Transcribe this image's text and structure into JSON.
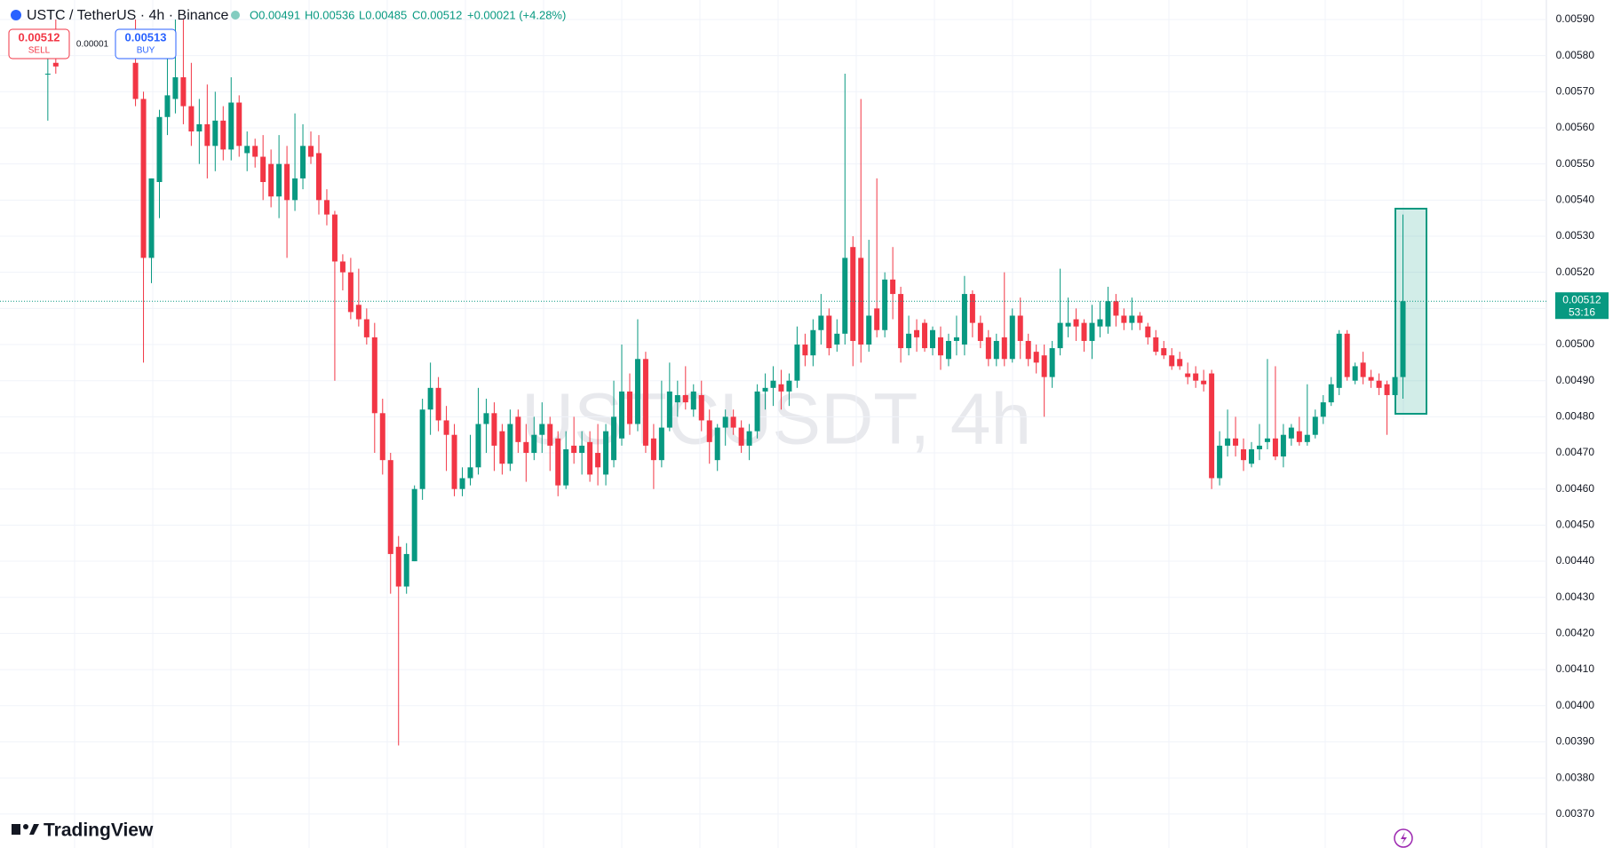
{
  "chart_data": {
    "type": "candlestick",
    "title": "USTC / TetherUS · 4h · Binance",
    "ohlc_legend": {
      "open": "O0.00491",
      "high": "H0.00536",
      "low": "L0.00485",
      "close": "C0.00512",
      "change": "+0.00021 (+4.28%)"
    },
    "trade_widget": {
      "sell_price": "0.00512",
      "sell": "SELL",
      "spread": "0.00001",
      "buy_price": "0.00513",
      "buy": "BUY"
    },
    "watermark": "USTCUSDT, 4h",
    "last_price": 0.00512,
    "countdown": "53:16",
    "brand": "TradingView",
    "up_color": "#089981",
    "down_color": "#f23645",
    "ylim": [
      0.003606,
      0.005954
    ],
    "yticks": [
      {
        "value": 0.0059,
        "label": "0.00590"
      },
      {
        "value": 0.0058,
        "label": "0.00580"
      },
      {
        "value": 0.0057,
        "label": "0.00570"
      },
      {
        "value": 0.0056,
        "label": "0.00560"
      },
      {
        "value": 0.0055,
        "label": "0.00550"
      },
      {
        "value": 0.0054,
        "label": "0.00540"
      },
      {
        "value": 0.0053,
        "label": "0.00530"
      },
      {
        "value": 0.0052,
        "label": "0.00520"
      },
      {
        "value": 0.0051,
        "label": "0.00510"
      },
      {
        "value": 0.005,
        "label": "0.00500"
      },
      {
        "value": 0.0049,
        "label": "0.00490"
      },
      {
        "value": 0.0048,
        "label": "0.00480"
      },
      {
        "value": 0.0047,
        "label": "0.00470"
      },
      {
        "value": 0.0046,
        "label": "0.00460"
      },
      {
        "value": 0.0045,
        "label": "0.00450"
      },
      {
        "value": 0.0044,
        "label": "0.00440"
      },
      {
        "value": 0.0043,
        "label": "0.00430"
      },
      {
        "value": 0.0042,
        "label": "0.00420"
      },
      {
        "value": 0.0041,
        "label": "0.00410"
      },
      {
        "value": 0.004,
        "label": "0.00400"
      },
      {
        "value": 0.0039,
        "label": "0.00390"
      },
      {
        "value": 0.0038,
        "label": "0.00380"
      },
      {
        "value": 0.0037,
        "label": "0.00370"
      }
    ],
    "grid": true,
    "open": [
      0.00575,
      0.00578,
      null,
      null,
      null,
      null,
      null,
      null,
      null,
      null,
      null,
      0.00578,
      0.00568,
      0.00524,
      0.00545,
      0.00563,
      0.00568,
      0.00574,
      0.00566,
      0.00559,
      0.00561,
      0.00555,
      0.00562,
      0.00554,
      0.00567,
      0.00553,
      0.00555,
      0.00552,
      0.0055,
      0.00541,
      0.0055,
      0.0054,
      0.00546,
      0.00555,
      0.00553,
      0.0054,
      0.00536,
      0.00523,
      0.0052,
      0.00511,
      0.00507,
      0.00502,
      0.00481,
      0.00468,
      0.00444,
      0.00433,
      0.0044,
      0.0046,
      0.00482,
      0.00488,
      0.00479,
      0.00475,
      0.0046,
      0.00463,
      0.00466,
      0.00478,
      0.00481,
      0.00476,
      0.00467,
      0.0048,
      0.00473,
      0.0047,
      0.00475,
      0.00478,
      0.00474,
      0.00461,
      0.00472,
      0.0047,
      0.00473,
      0.0047,
      0.00464,
      0.00468,
      0.00474,
      0.00487,
      0.00478,
      0.00496,
      0.00474,
      0.00468,
      0.00477,
      0.00484,
      0.00486,
      0.00482,
      0.00486,
      0.00479,
      0.00468,
      0.00477,
      0.0048,
      0.00477,
      0.00472,
      0.00476,
      0.00487,
      0.00488,
      0.00489,
      0.00487,
      0.0049,
      0.005,
      0.00497,
      0.00504,
      0.00508,
      0.005,
      0.00503,
      0.00527,
      0.00524,
      0.005,
      0.0051,
      0.00504,
      0.00518,
      0.00514,
      0.00499,
      0.00504,
      0.00506,
      0.00499,
      0.00502,
      0.00496,
      0.00501,
      0.005,
      0.00514,
      0.00506,
      0.00502,
      0.00496,
      0.00502,
      0.00496,
      0.00508,
      0.00501,
      0.00498,
      0.00497,
      0.00491,
      0.00499,
      0.00505,
      0.00507,
      0.00506,
      0.00501,
      0.00505,
      0.00505,
      0.00512,
      0.00508,
      0.00506,
      0.00508,
      0.00505,
      0.00502,
      0.00499,
      0.00497,
      0.00496,
      0.00492,
      0.00492,
      0.0049,
      0.00492,
      0.00463,
      0.00472,
      0.00474,
      0.00471,
      0.00467,
      0.00471,
      0.00473,
      0.00474,
      0.00469,
      0.00474,
      0.00476,
      0.00473,
      0.00475,
      0.0048,
      0.00484,
      0.00488,
      0.00503,
      0.0049,
      0.00495,
      0.00491,
      0.0049,
      0.00489,
      0.00486,
      0.00491
    ],
    "high": [
      0.0058,
      0.0059,
      null,
      null,
      null,
      null,
      null,
      null,
      null,
      null,
      null,
      0.0059,
      0.0057,
      0.00546,
      0.00565,
      0.0058,
      0.0059,
      0.0059,
      0.00578,
      0.00568,
      0.00572,
      0.0057,
      0.00566,
      0.00574,
      0.00569,
      0.00559,
      0.00557,
      0.00558,
      0.00554,
      0.00558,
      0.00555,
      0.00564,
      0.00561,
      0.00559,
      0.00558,
      0.00543,
      0.00537,
      0.00525,
      0.00524,
      0.00521,
      0.0051,
      0.00506,
      0.00485,
      0.0047,
      0.00447,
      0.00445,
      0.00461,
      0.00485,
      0.00495,
      0.00491,
      0.00483,
      0.00478,
      0.00466,
      0.00475,
      0.00488,
      0.00485,
      0.00484,
      0.00478,
      0.00482,
      0.00482,
      0.00478,
      0.0048,
      0.00484,
      0.0048,
      0.00476,
      0.00476,
      0.0048,
      0.00476,
      0.00476,
      0.00478,
      0.00478,
      0.0049,
      0.005,
      0.00492,
      0.00507,
      0.00498,
      0.00478,
      0.0049,
      0.00495,
      0.0049,
      0.00494,
      0.00489,
      0.0049,
      0.00482,
      0.00478,
      0.00482,
      0.00482,
      0.00479,
      0.00478,
      0.00489,
      0.00492,
      0.00494,
      0.00493,
      0.00492,
      0.00505,
      0.00503,
      0.00507,
      0.00514,
      0.0051,
      0.00507,
      0.00575,
      0.0053,
      0.00568,
      0.00529,
      0.00546,
      0.0052,
      0.00527,
      0.00516,
      0.00508,
      0.00507,
      0.00507,
      0.00505,
      0.00505,
      0.00503,
      0.00508,
      0.00519,
      0.00515,
      0.00508,
      0.00504,
      0.00503,
      0.0052,
      0.0051,
      0.00513,
      0.00503,
      0.005,
      0.005,
      0.00501,
      0.00521,
      0.00513,
      0.0051,
      0.00507,
      0.00511,
      0.00512,
      0.00516,
      0.00514,
      0.0051,
      0.00513,
      0.00509,
      0.00506,
      0.00504,
      0.00501,
      0.00499,
      0.00498,
      0.00495,
      0.00494,
      0.00493,
      0.00493,
      0.00476,
      0.00482,
      0.0048,
      0.00474,
      0.00473,
      0.00478,
      0.00496,
      0.00494,
      0.00478,
      0.00478,
      0.0048,
      0.00489,
      0.00482,
      0.00486,
      0.00491,
      0.00504,
      0.00504,
      0.00495,
      0.00498,
      0.00493,
      0.00492,
      0.0049,
      0.00491,
      0.00536
    ],
    "low": [
      0.00562,
      0.00575,
      null,
      null,
      null,
      null,
      null,
      null,
      null,
      null,
      null,
      0.00566,
      0.00495,
      0.00517,
      0.00535,
      0.00558,
      0.00564,
      0.00561,
      0.00555,
      0.0055,
      0.00546,
      0.00548,
      0.00551,
      0.00551,
      0.00552,
      0.00548,
      0.00549,
      0.0054,
      0.00538,
      0.00535,
      0.00524,
      0.00537,
      0.00543,
      0.0055,
      0.00536,
      0.00533,
      0.0049,
      0.00515,
      0.00507,
      0.00505,
      0.005,
      0.0047,
      0.00464,
      0.00431,
      0.00389,
      0.00431,
      0.0044,
      0.00457,
      0.00475,
      0.00476,
      0.00465,
      0.00458,
      0.00458,
      0.00461,
      0.00464,
      0.0047,
      0.00465,
      0.00464,
      0.00465,
      0.0047,
      0.00462,
      0.00468,
      0.0047,
      0.00465,
      0.00458,
      0.0046,
      0.00467,
      0.00464,
      0.00462,
      0.00461,
      0.00461,
      0.00466,
      0.00472,
      0.00475,
      0.00476,
      0.0047,
      0.0046,
      0.00466,
      0.00476,
      0.0048,
      0.00482,
      0.0048,
      0.00476,
      0.00467,
      0.00465,
      0.00472,
      0.00475,
      0.0047,
      0.00468,
      0.00474,
      0.00482,
      0.00483,
      0.00482,
      0.00483,
      0.00488,
      0.00494,
      0.00494,
      0.005,
      0.00497,
      0.00498,
      0.005,
      0.00494,
      0.00495,
      0.00498,
      0.00502,
      0.00502,
      0.00507,
      0.00495,
      0.00497,
      0.00498,
      0.00498,
      0.00497,
      0.00493,
      0.00494,
      0.00497,
      0.00497,
      0.00502,
      0.00499,
      0.00494,
      0.00494,
      0.00494,
      0.00495,
      0.00496,
      0.00494,
      0.00492,
      0.0048,
      0.00488,
      0.00497,
      0.00502,
      0.00501,
      0.00498,
      0.00496,
      0.00502,
      0.00503,
      0.00505,
      0.00504,
      0.00504,
      0.00504,
      0.005,
      0.00497,
      0.00496,
      0.00493,
      0.00493,
      0.00489,
      0.00488,
      0.00487,
      0.0046,
      0.00461,
      0.00469,
      0.00469,
      0.00465,
      0.00466,
      0.00468,
      0.00471,
      0.00468,
      0.00466,
      0.00472,
      0.00472,
      0.00472,
      0.00474,
      0.00478,
      0.00483,
      0.00486,
      0.0049,
      0.00489,
      0.00489,
      0.00488,
      0.00486,
      0.00475,
      0.00485,
      0.00485
    ],
    "close": [
      0.00575,
      0.00577,
      null,
      null,
      null,
      null,
      null,
      null,
      null,
      null,
      null,
      0.00568,
      0.00524,
      0.00546,
      0.00563,
      0.00569,
      0.00574,
      0.00566,
      0.00559,
      0.00561,
      0.00555,
      0.00562,
      0.00554,
      0.00567,
      0.00555,
      0.00555,
      0.00552,
      0.00545,
      0.00541,
      0.0055,
      0.0054,
      0.00546,
      0.00555,
      0.00552,
      0.0054,
      0.00536,
      0.00523,
      0.0052,
      0.00509,
      0.00507,
      0.00502,
      0.00481,
      0.00468,
      0.00442,
      0.00433,
      0.00442,
      0.0046,
      0.00482,
      0.00488,
      0.00479,
      0.00475,
      0.0046,
      0.00463,
      0.00466,
      0.00478,
      0.00481,
      0.00472,
      0.00467,
      0.00478,
      0.00473,
      0.0047,
      0.00475,
      0.00478,
      0.00472,
      0.00461,
      0.00471,
      0.0047,
      0.00472,
      0.00464,
      0.00466,
      0.00476,
      0.0048,
      0.00487,
      0.00478,
      0.00496,
      0.00472,
      0.00468,
      0.00477,
      0.00487,
      0.00486,
      0.00484,
      0.00487,
      0.00479,
      0.00473,
      0.00477,
      0.0048,
      0.00477,
      0.00472,
      0.00476,
      0.00487,
      0.00488,
      0.0049,
      0.00487,
      0.0049,
      0.005,
      0.00497,
      0.00504,
      0.00508,
      0.00499,
      0.00503,
      0.00524,
      0.00501,
      0.005,
      0.00508,
      0.00504,
      0.00518,
      0.00514,
      0.00499,
      0.00503,
      0.00502,
      0.00499,
      0.00504,
      0.00497,
      0.00501,
      0.00502,
      0.00514,
      0.00506,
      0.00501,
      0.00496,
      0.00501,
      0.00496,
      0.00508,
      0.00501,
      0.00496,
      0.00495,
      0.00491,
      0.00499,
      0.00506,
      0.00506,
      0.00505,
      0.00501,
      0.00506,
      0.00507,
      0.00512,
      0.00508,
      0.00506,
      0.00508,
      0.00506,
      0.00502,
      0.00498,
      0.00497,
      0.00494,
      0.00494,
      0.00491,
      0.0049,
      0.00489,
      0.00463,
      0.00472,
      0.00474,
      0.00472,
      0.00468,
      0.00471,
      0.00472,
      0.00474,
      0.00469,
      0.00475,
      0.00477,
      0.00473,
      0.00475,
      0.0048,
      0.00484,
      0.00489,
      0.00503,
      0.00491,
      0.00494,
      0.00491,
      0.0049,
      0.00488,
      0.00486,
      0.00491,
      0.00512
    ]
  }
}
